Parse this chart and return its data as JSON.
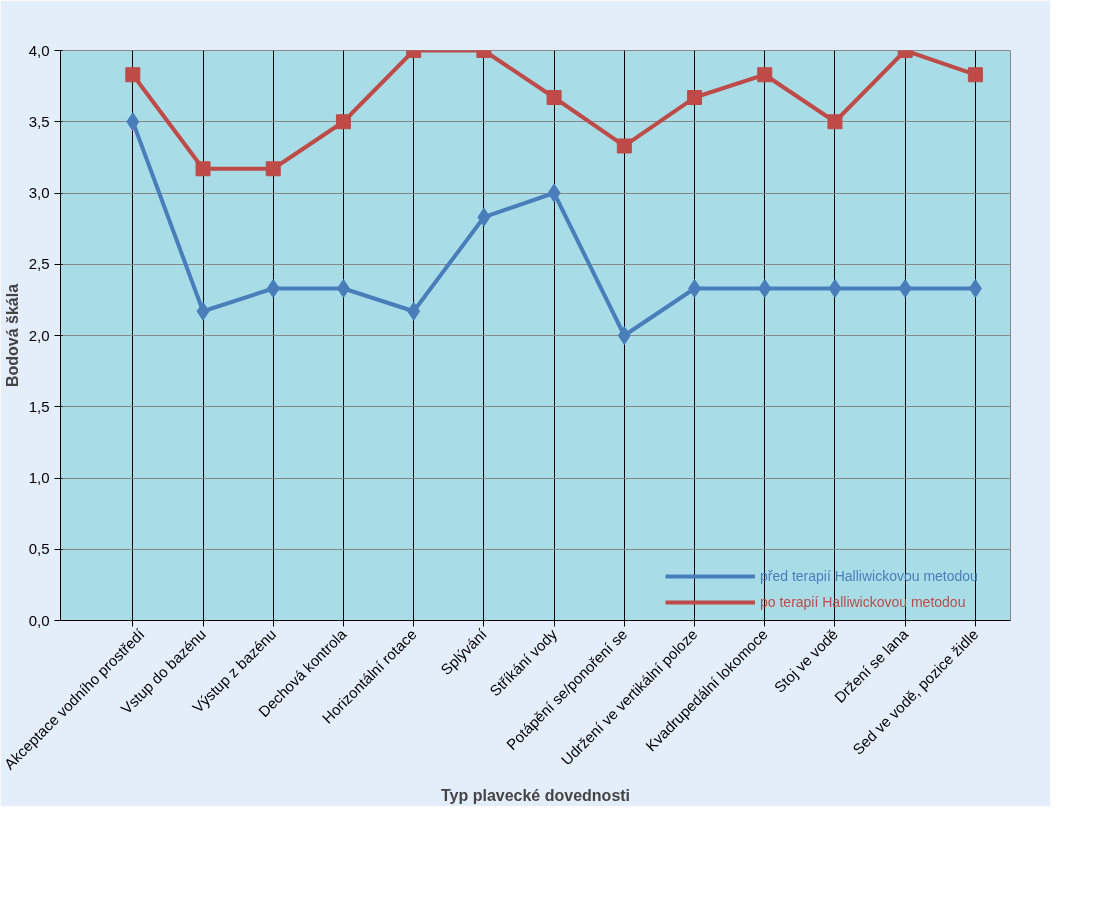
{
  "chart_data": {
    "type": "line",
    "xlabel": "Typ plavecké dovednosti",
    "ylabel": "Bodová škála",
    "categories": [
      "Akceptace vodního prostředí",
      "Vstup do bazénu",
      "Výstup z bazénu",
      "Dechová kontrola",
      "Horizontální rotace",
      "Splývání",
      "Stříkání vody",
      "Potápění se/ponoření se",
      "Udržení ve vertikální poloze",
      "Kvadrupedální lokomoce",
      "Stoj ve vodě",
      "Držení se lana",
      "Sed ve vodě, pozice židle"
    ],
    "series": [
      {
        "name": "před terapií Halliwickovou metodou",
        "color": "#4a7ebb",
        "marker": "diamond",
        "values": [
          3.5,
          2.17,
          2.33,
          2.33,
          2.17,
          2.83,
          3.0,
          2.0,
          2.33,
          2.33,
          2.33,
          2.33,
          2.33
        ]
      },
      {
        "name": "po terapií Halliwickovou metodou",
        "color": "#be4b48",
        "marker": "square",
        "values": [
          3.83,
          3.17,
          3.17,
          3.5,
          4.0,
          4.0,
          3.67,
          3.33,
          3.67,
          3.83,
          3.5,
          4.0,
          3.83
        ]
      }
    ],
    "ylim": [
      0,
      4
    ],
    "yticks": [
      {
        "value": 0,
        "label": "0,0"
      },
      {
        "value": 0.5,
        "label": "0,5"
      },
      {
        "value": 1,
        "label": "1,0"
      },
      {
        "value": 1.5,
        "label": "1,5"
      },
      {
        "value": 2,
        "label": "2,0"
      },
      {
        "value": 2.5,
        "label": "2,5"
      },
      {
        "value": 3,
        "label": "3,0"
      },
      {
        "value": 3.5,
        "label": "3,5"
      },
      {
        "value": 4,
        "label": "4,0"
      }
    ],
    "grid": true,
    "legend": "bottom right",
    "line_style": "solid"
  }
}
